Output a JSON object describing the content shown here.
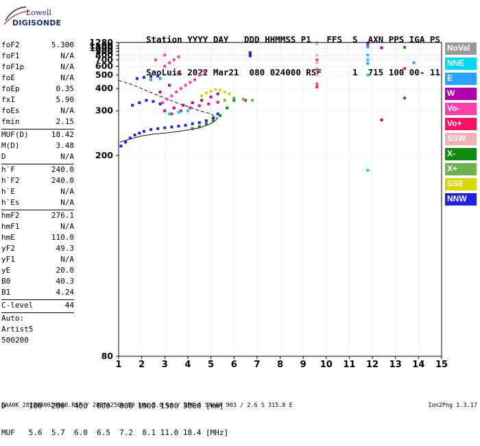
{
  "logo": {
    "line1": "Lowell",
    "line2": "DIGISONDE"
  },
  "header": {
    "line1": "Station YYYY DAY   DDD HHMMSS P1   FFS  S  AXN PPS IGA PS",
    "line2": "SaoLuis 2022 Mar21  080 024000 RSF      1  715 100 00- 11"
  },
  "params": {
    "group1": [
      {
        "label": "foF2",
        "value": "5.300"
      },
      {
        "label": "foF1",
        "value": "N/A"
      },
      {
        "label": "foF1p",
        "value": "N/A"
      },
      {
        "label": "foE",
        "value": "N/A"
      },
      {
        "label": "foEp",
        "value": "0.35"
      },
      {
        "label": "fxI",
        "value": "5.90"
      },
      {
        "label": "foEs",
        "value": "N/A"
      },
      {
        "label": "fmin",
        "value": "2.15"
      }
    ],
    "group2": [
      {
        "label": "MUF(D)",
        "value": "18.42"
      },
      {
        "label": "M(D)",
        "value": "3.48"
      },
      {
        "label": "D",
        "value": "N/A"
      }
    ],
    "group3": [
      {
        "label": "h`F",
        "value": "240.0"
      },
      {
        "label": "h`F2",
        "value": "240.0"
      },
      {
        "label": "h`E",
        "value": "N/A"
      },
      {
        "label": "h`Es",
        "value": "N/A"
      }
    ],
    "group4": [
      {
        "label": "hmF2",
        "value": "276.1"
      },
      {
        "label": "hmF1",
        "value": "N/A"
      },
      {
        "label": "hmE",
        "value": "110.0"
      },
      {
        "label": "yF2",
        "value": "49.3"
      },
      {
        "label": "yF1",
        "value": "N/A"
      },
      {
        "label": "yE",
        "value": "20.0"
      },
      {
        "label": "B0",
        "value": "40.3"
      },
      {
        "label": "B1",
        "value": "4.24"
      }
    ],
    "clevel": {
      "label": "C-level",
      "value": "44"
    },
    "auto": [
      "Auto:",
      "Artist5",
      "500200"
    ]
  },
  "legend": [
    {
      "label": "NoVal",
      "color": "#9a9a9a"
    },
    {
      "label": "NNE",
      "color": "#00d8f0"
    },
    {
      "label": "E",
      "color": "#2aa0ff"
    },
    {
      "label": "W",
      "color": "#b000b0"
    },
    {
      "label": "Vo-",
      "color": "#ff40a8"
    },
    {
      "label": "Vo+",
      "color": "#ff1060"
    },
    {
      "label": "SSW",
      "color": "#f4b0b0"
    },
    {
      "label": "X-",
      "color": "#108a10"
    },
    {
      "label": "X+",
      "color": "#70b050"
    },
    {
      "label": "SSE",
      "color": "#d8d800"
    },
    {
      "label": "NNW",
      "color": "#2020e0"
    }
  ],
  "footer": {
    "line1": "D     100  200  400  600  800 1000 1500 3000 [km]",
    "line2": "MUF   5.6  5.7  6.0  6.5  7.2  8.1 11.0 18.4 [MHz]"
  },
  "bottom": "SAA0K_2022080024000.RSF / 280fx256h 50 kHz 5.0 km / DPS-4 SAA0K 903 / 2.6 S 315.8 E",
  "version": "Ion2Png 1.3.17",
  "chart_data": {
    "type": "scatter",
    "title": "",
    "xlabel": "",
    "ylabel": "",
    "xlim": [
      1,
      15
    ],
    "ylim": [
      80,
      1280
    ],
    "y_scale": "reciprocal",
    "x_ticks": [
      1,
      2,
      3,
      4,
      5,
      6,
      7,
      8,
      9,
      10,
      11,
      12,
      13,
      14,
      15
    ],
    "y_ticks": [
      80,
      200,
      300,
      400,
      500,
      600,
      700,
      800,
      900,
      1000,
      1100,
      1280
    ],
    "grid": true,
    "series": [
      {
        "color": "#2020e0",
        "points": [
          [
            1.1,
            215
          ],
          [
            1.3,
            222
          ],
          [
            1.5,
            230
          ],
          [
            1.7,
            236
          ],
          [
            1.9,
            240
          ],
          [
            2.1,
            244
          ],
          [
            2.4,
            248
          ],
          [
            2.7,
            250
          ],
          [
            3.0,
            252
          ],
          [
            3.3,
            254
          ],
          [
            3.6,
            256
          ],
          [
            3.9,
            258
          ],
          [
            4.2,
            262
          ],
          [
            4.5,
            265
          ],
          [
            4.8,
            270
          ],
          [
            5.1,
            278
          ],
          [
            5.3,
            290
          ],
          [
            1.6,
            320
          ],
          [
            1.9,
            330
          ],
          [
            2.2,
            340
          ],
          [
            2.5,
            335
          ],
          [
            2.8,
            325
          ],
          [
            1.8,
            470
          ],
          [
            2.1,
            480
          ],
          [
            2.4,
            488
          ],
          [
            2.7,
            492
          ],
          [
            6.7,
            780
          ],
          [
            6.7,
            820
          ],
          [
            6.7,
            860
          ]
        ]
      },
      {
        "color": "#ff40a8",
        "points": [
          [
            2.9,
            330
          ],
          [
            3.1,
            345
          ],
          [
            3.3,
            360
          ],
          [
            3.5,
            380
          ],
          [
            3.7,
            400
          ],
          [
            3.9,
            420
          ],
          [
            4.1,
            440
          ],
          [
            4.3,
            460
          ],
          [
            4.5,
            500
          ],
          [
            4.7,
            540
          ],
          [
            3.0,
            600
          ],
          [
            3.2,
            650
          ],
          [
            3.4,
            700
          ],
          [
            3.6,
            760
          ],
          [
            3.0,
            800
          ],
          [
            2.6,
            700
          ],
          [
            9.6,
            430
          ],
          [
            9.6,
            560
          ],
          [
            9.6,
            700
          ]
        ]
      },
      {
        "color": "#b000b0",
        "points": [
          [
            3.0,
            300
          ],
          [
            3.4,
            310
          ],
          [
            3.8,
            320
          ],
          [
            4.2,
            330
          ],
          [
            4.6,
            340
          ],
          [
            5.0,
            355
          ],
          [
            5.3,
            370
          ],
          [
            2.8,
            380
          ],
          [
            3.2,
            420
          ],
          [
            3.6,
            520
          ],
          [
            11.8,
            1240
          ],
          [
            11.8,
            1090
          ],
          [
            12.4,
            1020
          ],
          [
            12.4,
            272
          ]
        ]
      },
      {
        "color": "#d8d800",
        "points": [
          [
            4.6,
            360
          ],
          [
            4.8,
            375
          ],
          [
            5.0,
            385
          ],
          [
            5.2,
            395
          ],
          [
            5.4,
            390
          ],
          [
            5.6,
            380
          ],
          [
            5.8,
            370
          ]
        ]
      },
      {
        "color": "#108a10",
        "points": [
          [
            4.2,
            250
          ],
          [
            4.5,
            255
          ],
          [
            4.8,
            262
          ],
          [
            5.1,
            270
          ],
          [
            5.4,
            285
          ],
          [
            5.7,
            310
          ],
          [
            6.0,
            340
          ],
          [
            13.4,
            1040
          ],
          [
            13.4,
            350
          ]
        ]
      },
      {
        "color": "#ff1060",
        "points": [
          [
            3.3,
            290
          ],
          [
            3.7,
            300
          ],
          [
            4.1,
            310
          ],
          [
            4.5,
            318
          ],
          [
            4.9,
            325
          ],
          [
            5.3,
            332
          ],
          [
            6.5,
            340
          ],
          [
            9.6,
            410
          ],
          [
            13.4,
            570
          ]
        ]
      },
      {
        "color": "#f4b0b0",
        "points": [
          [
            9.6,
            1280
          ],
          [
            9.6,
            1200
          ],
          [
            9.6,
            800
          ],
          [
            9.6,
            650
          ],
          [
            9.6,
            500
          ]
        ]
      },
      {
        "color": "#00d8f0",
        "points": [
          [
            3.2,
            290
          ],
          [
            3.6,
            295
          ],
          [
            4.0,
            300
          ],
          [
            11.8,
            800
          ],
          [
            11.8,
            700
          ],
          [
            11.8,
            500
          ],
          [
            11.8,
            180
          ]
        ]
      },
      {
        "color": "#2aa0ff",
        "points": [
          [
            2.4,
            460
          ],
          [
            2.8,
            470
          ],
          [
            11.8,
            1050
          ],
          [
            11.8,
            640
          ],
          [
            13.8,
            650
          ]
        ]
      },
      {
        "color": "#70b050",
        "points": [
          [
            5.6,
            340
          ],
          [
            6.0,
            350
          ],
          [
            6.4,
            345
          ],
          [
            6.8,
            340
          ]
        ]
      }
    ],
    "curves": [
      {
        "style": "solid",
        "points": [
          [
            1.05,
            222
          ],
          [
            1.5,
            228
          ],
          [
            2.0,
            234
          ],
          [
            2.5,
            238
          ],
          [
            3.0,
            240
          ],
          [
            3.5,
            243
          ],
          [
            4.0,
            247
          ],
          [
            4.5,
            252
          ],
          [
            5.0,
            262
          ],
          [
            5.3,
            276
          ]
        ]
      },
      {
        "style": "dashed",
        "points": [
          [
            1.0,
            455
          ],
          [
            1.5,
            430
          ],
          [
            2.0,
            400
          ],
          [
            2.5,
            372
          ],
          [
            3.0,
            350
          ],
          [
            3.5,
            330
          ],
          [
            4.0,
            315
          ],
          [
            4.5,
            300
          ],
          [
            5.0,
            290
          ],
          [
            5.3,
            276
          ]
        ]
      }
    ]
  }
}
